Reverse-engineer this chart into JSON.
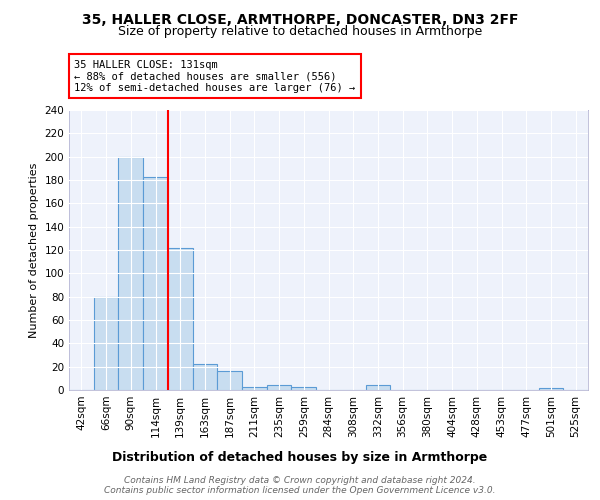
{
  "title1": "35, HALLER CLOSE, ARMTHORPE, DONCASTER, DN3 2FF",
  "title2": "Size of property relative to detached houses in Armthorpe",
  "xlabel": "Distribution of detached houses by size in Armthorpe",
  "ylabel": "Number of detached properties",
  "bin_labels": [
    "42sqm",
    "66sqm",
    "90sqm",
    "114sqm",
    "139sqm",
    "163sqm",
    "187sqm",
    "211sqm",
    "235sqm",
    "259sqm",
    "284sqm",
    "308sqm",
    "332sqm",
    "356sqm",
    "380sqm",
    "404sqm",
    "428sqm",
    "453sqm",
    "477sqm",
    "501sqm",
    "525sqm"
  ],
  "bar_heights": [
    0,
    80,
    200,
    183,
    122,
    22,
    16,
    3,
    4,
    3,
    0,
    0,
    4,
    0,
    0,
    0,
    0,
    0,
    0,
    2,
    0
  ],
  "bar_color": "#c8ddf0",
  "bar_edgecolor": "#5b9bd5",
  "vline_color": "red",
  "vline_pos": 3.5,
  "annotation_text": "35 HALLER CLOSE: 131sqm\n← 88% of detached houses are smaller (556)\n12% of semi-detached houses are larger (76) →",
  "annotation_box_edgecolor": "red",
  "annotation_box_facecolor": "white",
  "ylim": [
    0,
    240
  ],
  "yticks": [
    0,
    20,
    40,
    60,
    80,
    100,
    120,
    140,
    160,
    180,
    200,
    220,
    240
  ],
  "footer_text": "Contains HM Land Registry data © Crown copyright and database right 2024.\nContains public sector information licensed under the Open Government Licence v3.0.",
  "bg_color": "#eef2fb",
  "grid_color": "#ffffff",
  "title1_fontsize": 10,
  "title2_fontsize": 9,
  "xlabel_fontsize": 9,
  "ylabel_fontsize": 8,
  "tick_fontsize": 7.5,
  "footer_fontsize": 6.5,
  "annot_fontsize": 7.5
}
